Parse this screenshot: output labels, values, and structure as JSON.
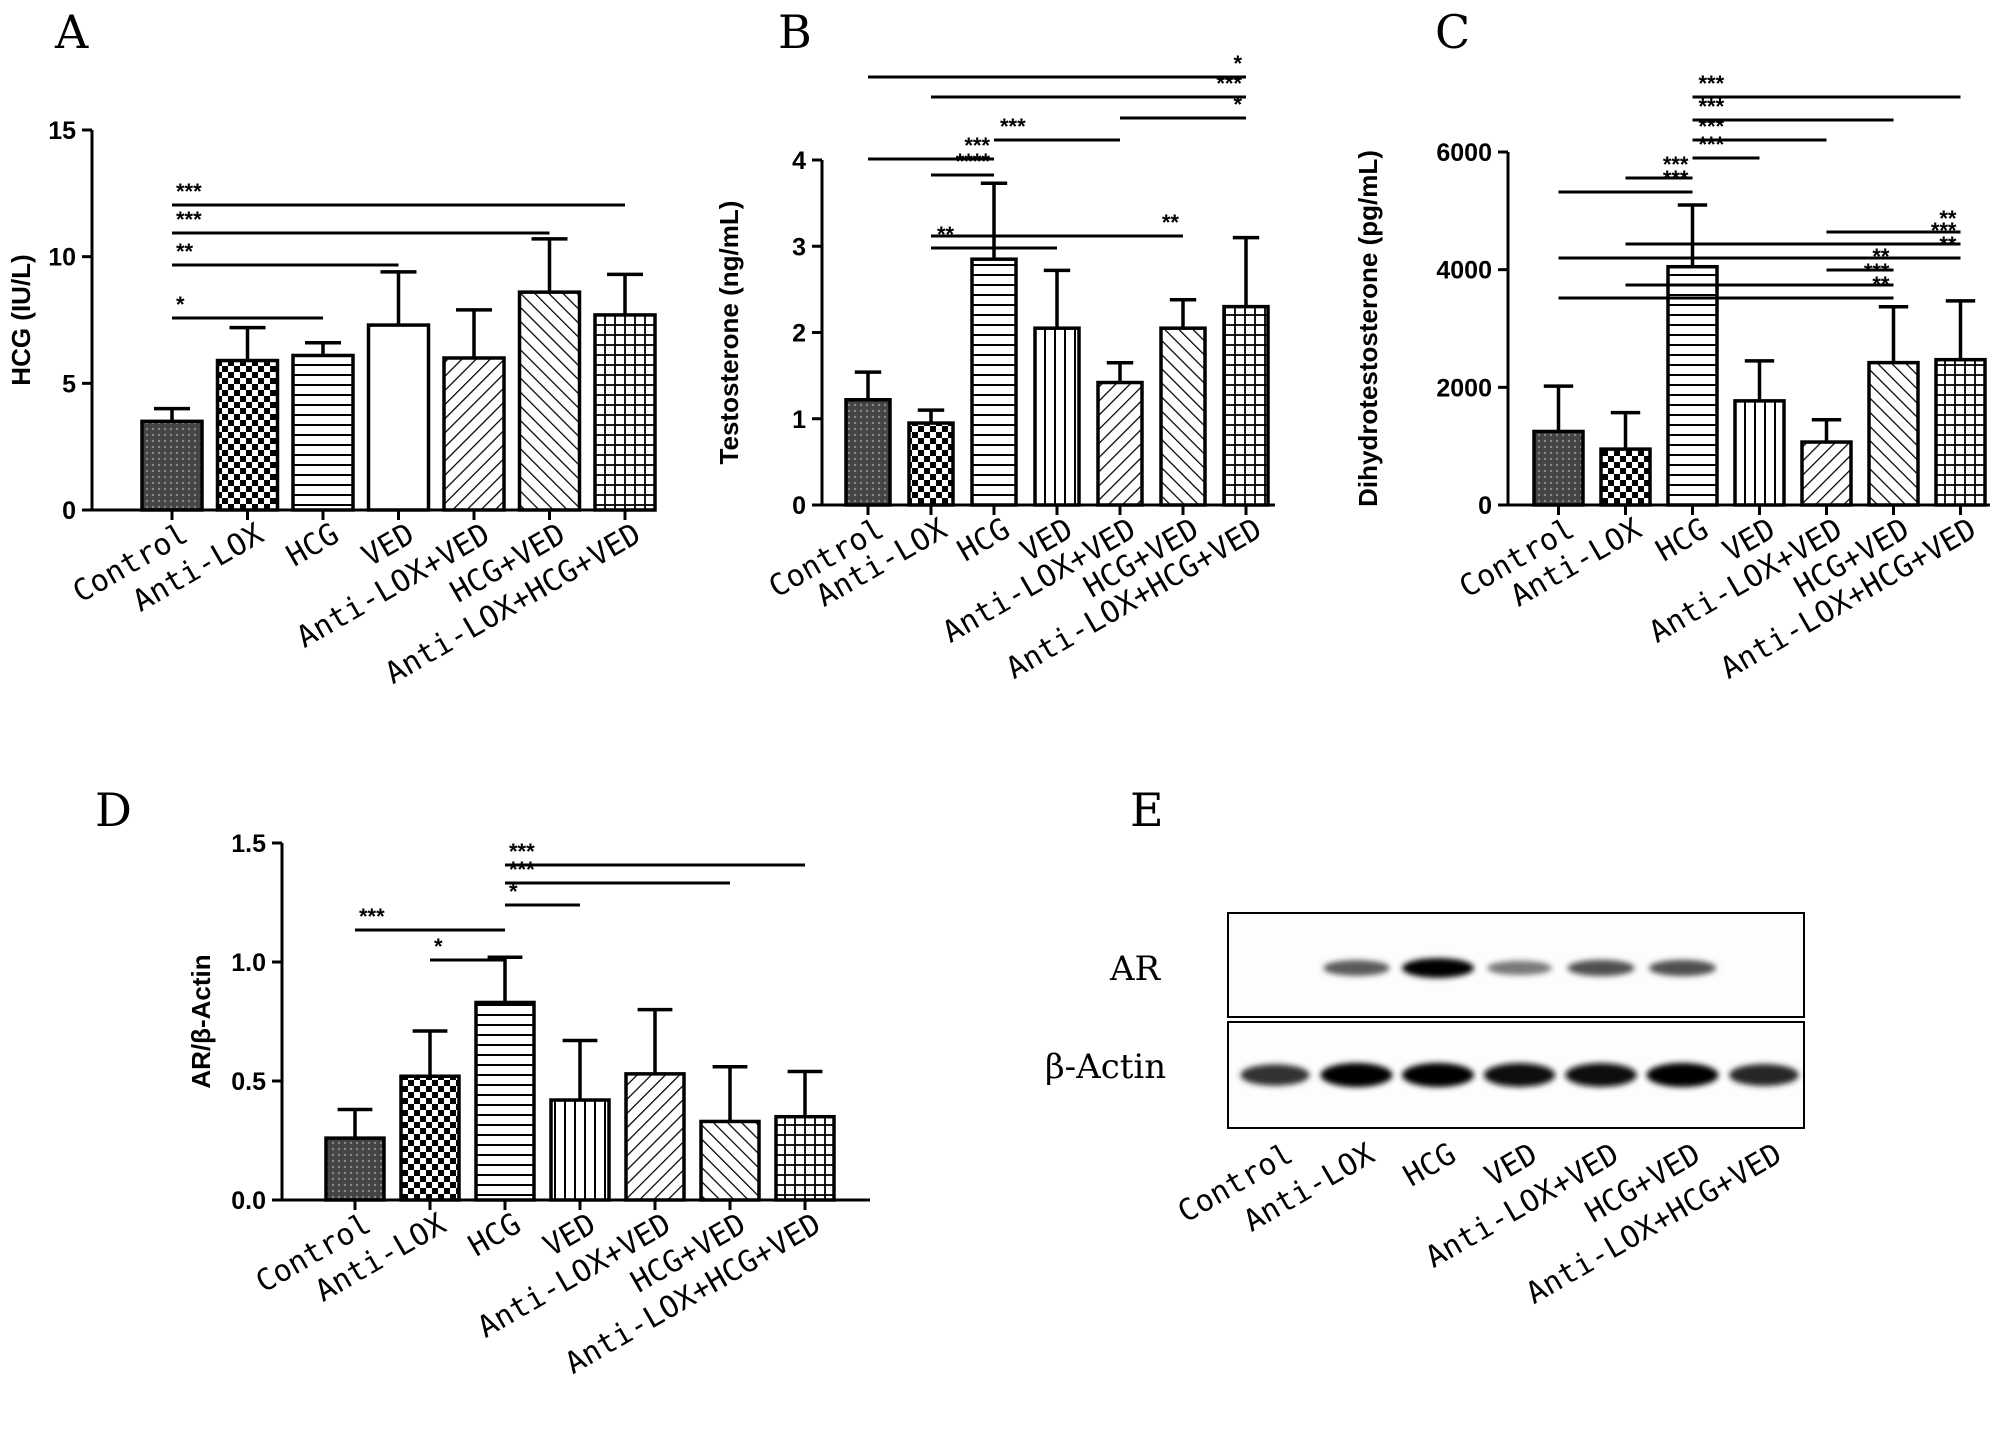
{
  "chart_data": [
    {
      "panel": "A",
      "type": "bar",
      "ylabel": "HCG (IU/L)",
      "ylim": [
        0,
        15
      ],
      "yticks": [
        0,
        5,
        10,
        15
      ],
      "categories": [
        "Control",
        "Anti-LOX",
        "HCG",
        "VED",
        "Anti-LOX+VED",
        "HCG+VED",
        "Anti-LOX+HCG+VED"
      ],
      "values": [
        3.5,
        5.9,
        6.1,
        7.3,
        6.0,
        8.6,
        7.7
      ],
      "errors": [
        0.5,
        1.3,
        0.5,
        2.1,
        1.9,
        2.1,
        1.6
      ],
      "patterns": [
        "dark-dots",
        "checker",
        "horizontal",
        "white",
        "diag-left",
        "diag-right",
        "grid"
      ],
      "significance": [
        {
          "from": 0,
          "to": 2,
          "label": "*"
        },
        {
          "from": 0,
          "to": 3,
          "label": "**"
        },
        {
          "from": 0,
          "to": 5,
          "label": "***"
        },
        {
          "from": 0,
          "to": 6,
          "label": "***"
        }
      ]
    },
    {
      "panel": "B",
      "type": "bar",
      "ylabel": "Testosterone (ng/mL)",
      "ylim": [
        0,
        4
      ],
      "yticks": [
        0,
        1,
        2,
        3,
        4
      ],
      "categories": [
        "Control",
        "Anti-LOX",
        "HCG",
        "VED",
        "Anti-LOX+VED",
        "HCG+VED",
        "Anti-LOX+HCG+VED"
      ],
      "values": [
        1.22,
        0.95,
        2.85,
        2.05,
        1.42,
        2.05,
        2.3
      ],
      "errors": [
        0.32,
        0.15,
        0.88,
        0.67,
        0.23,
        0.33,
        0.8
      ],
      "patterns": [
        "dark-dots",
        "checker",
        "horizontal",
        "vertical",
        "diag-left",
        "diag-right",
        "grid"
      ],
      "significance": [
        {
          "from": 1,
          "to": 3,
          "label": "**"
        },
        {
          "from": 1,
          "to": 5,
          "label": "**"
        },
        {
          "from": 1,
          "to": 2,
          "label": "****"
        },
        {
          "from": 0,
          "to": 2,
          "label": "***"
        },
        {
          "from": 2,
          "to": 4,
          "label": "***"
        },
        {
          "from": 4,
          "to": 6,
          "label": "*"
        },
        {
          "from": 1,
          "to": 6,
          "label": "***"
        },
        {
          "from": 0,
          "to": 6,
          "label": "*"
        }
      ]
    },
    {
      "panel": "C",
      "type": "bar",
      "ylabel": "Dihydrotestosterone (pg/mL)",
      "ylim": [
        0,
        6000
      ],
      "yticks": [
        0,
        2000,
        4000,
        6000
      ],
      "categories": [
        "Control",
        "Anti-LOX",
        "HCG",
        "VED",
        "Anti-LOX+VED",
        "HCG+VED",
        "Anti-LOX+HCG+VED"
      ],
      "values": [
        1250,
        950,
        4050,
        1770,
        1070,
        2420,
        2470
      ],
      "errors": [
        770,
        620,
        1050,
        680,
        380,
        950,
        1000
      ],
      "patterns": [
        "dark-dots",
        "checker",
        "horizontal",
        "vertical",
        "diag-left",
        "diag-right",
        "grid"
      ],
      "significance": [
        {
          "from": 0,
          "to": 5,
          "label": "**"
        },
        {
          "from": 1,
          "to": 5,
          "label": "***"
        },
        {
          "from": 4,
          "to": 5,
          "label": "**"
        },
        {
          "from": 0,
          "to": 6,
          "label": "**"
        },
        {
          "from": 1,
          "to": 6,
          "label": "***"
        },
        {
          "from": 4,
          "to": 6,
          "label": "**"
        },
        {
          "from": 0,
          "to": 2,
          "label": "***"
        },
        {
          "from": 1,
          "to": 2,
          "label": "***"
        },
        {
          "from": 2,
          "to": 3,
          "label": "***"
        },
        {
          "from": 2,
          "to": 4,
          "label": "***"
        },
        {
          "from": 2,
          "to": 5,
          "label": "***"
        },
        {
          "from": 2,
          "to": 6,
          "label": "***"
        }
      ]
    },
    {
      "panel": "D",
      "type": "bar",
      "ylabel": "AR/β-Actin",
      "ylim": [
        0,
        1.5
      ],
      "yticks": [
        "0.0",
        "0.5",
        "1.0",
        "1.5"
      ],
      "categories": [
        "Control",
        "Anti-LOX",
        "HCG",
        "VED",
        "Anti-LOX+VED",
        "HCG+VED",
        "Anti-LOX+HCG+VED"
      ],
      "values": [
        0.26,
        0.52,
        0.83,
        0.42,
        0.53,
        0.33,
        0.35
      ],
      "errors": [
        0.12,
        0.19,
        0.19,
        0.25,
        0.27,
        0.23,
        0.19
      ],
      "patterns": [
        "dark-dots",
        "checker",
        "horizontal",
        "vertical",
        "diag-left",
        "diag-right",
        "grid"
      ],
      "significance": [
        {
          "from": 1,
          "to": 2,
          "label": "*"
        },
        {
          "from": 0,
          "to": 2,
          "label": "***"
        },
        {
          "from": 2,
          "to": 3,
          "label": "*"
        },
        {
          "from": 2,
          "to": 5,
          "label": "***"
        },
        {
          "from": 2,
          "to": 6,
          "label": "***"
        }
      ]
    }
  ],
  "blot": {
    "panel": "E",
    "rows": [
      {
        "label": "AR",
        "intensity": [
          0.0,
          0.55,
          1.0,
          0.4,
          0.6,
          0.6,
          0.0
        ]
      },
      {
        "label": "β-Actin",
        "intensity": [
          0.75,
          1.0,
          1.0,
          0.95,
          0.95,
          1.0,
          0.8
        ]
      }
    ],
    "lanes": [
      "Control",
      "Anti-LOX",
      "HCG",
      "VED",
      "Anti-LOX+VED",
      "HCG+VED",
      "Anti-LOX+HCG+VED"
    ]
  }
}
